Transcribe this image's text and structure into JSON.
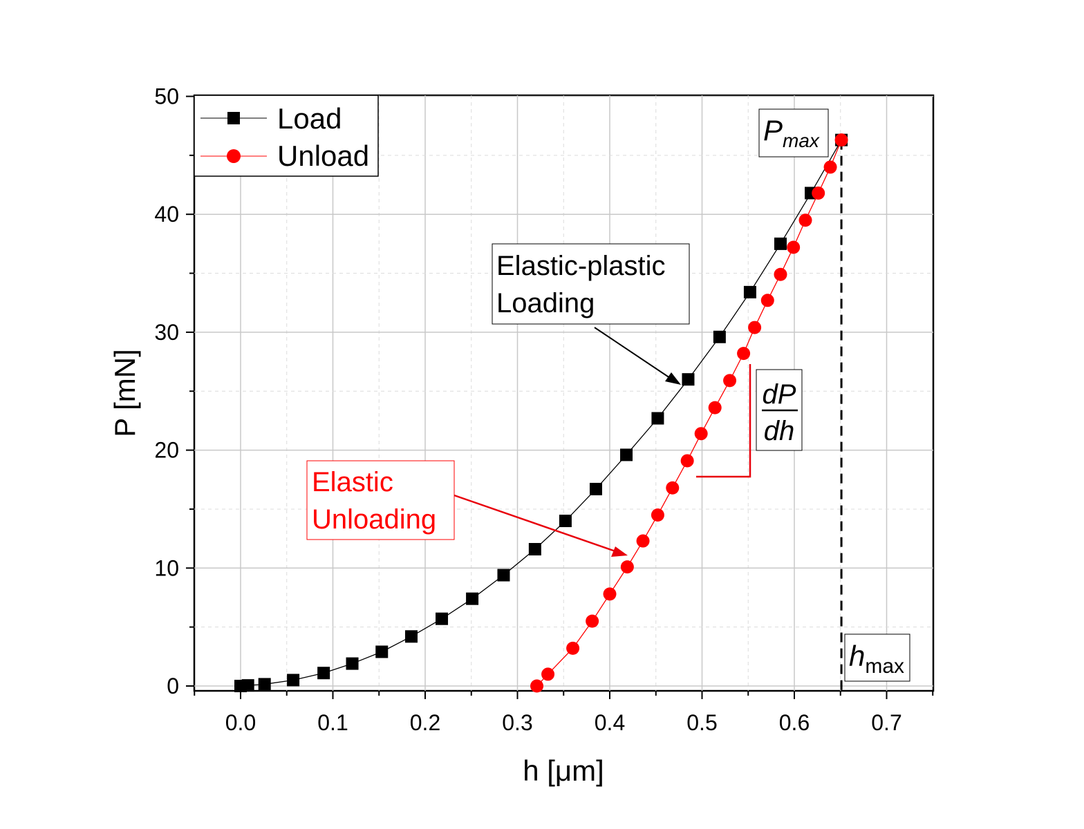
{
  "chart_data": {
    "type": "scatter",
    "title": "",
    "xlabel": "h [μm]",
    "ylabel": "P [mN]",
    "xlim": [
      -0.05,
      0.75
    ],
    "ylim": [
      -0.5,
      50
    ],
    "xticks": [
      "0.0",
      "0.1",
      "0.2",
      "0.3",
      "0.4",
      "0.5",
      "0.6",
      "0.7"
    ],
    "yticks": [
      "0",
      "10",
      "20",
      "30",
      "40",
      "50"
    ],
    "grid": true,
    "legend_position": "top-left",
    "series": [
      {
        "name": "Load",
        "color": "#000000",
        "marker": "square",
        "x": [
          0.0,
          0.008,
          0.026,
          0.057,
          0.09,
          0.121,
          0.153,
          0.185,
          0.218,
          0.251,
          0.285,
          0.319,
          0.352,
          0.385,
          0.418,
          0.452,
          0.485,
          0.519,
          0.552,
          0.585,
          0.618,
          0.651
        ],
        "y": [
          0.0,
          0.05,
          0.15,
          0.5,
          1.1,
          1.9,
          2.9,
          4.2,
          5.7,
          7.4,
          9.4,
          11.6,
          14.0,
          16.7,
          19.6,
          22.7,
          26.0,
          29.6,
          33.4,
          37.5,
          41.8,
          46.3
        ]
      },
      {
        "name": "Unload",
        "color": "#ff0000",
        "marker": "circle",
        "x": [
          0.321,
          0.333,
          0.36,
          0.381,
          0.4,
          0.419,
          0.436,
          0.452,
          0.468,
          0.484,
          0.499,
          0.514,
          0.53,
          0.545,
          0.557,
          0.571,
          0.585,
          0.599,
          0.612,
          0.626,
          0.639,
          0.651
        ],
        "y": [
          0.0,
          1.0,
          3.2,
          5.5,
          7.8,
          10.1,
          12.3,
          14.5,
          16.8,
          19.1,
          21.4,
          23.6,
          25.9,
          28.2,
          30.4,
          32.7,
          34.9,
          37.2,
          39.5,
          41.8,
          44.0,
          46.3
        ]
      }
    ],
    "annotations": {
      "pmax": {
        "base": "P",
        "sub": "max"
      },
      "hmax": {
        "base": "h",
        "sub": "max"
      },
      "slope": {
        "num": "dP",
        "den": "dh"
      },
      "elastic_plastic": {
        "line1": "Elastic-plastic",
        "line2": "Loading"
      },
      "elastic": {
        "line1": "Elastic",
        "line2": "Unloading"
      }
    }
  }
}
